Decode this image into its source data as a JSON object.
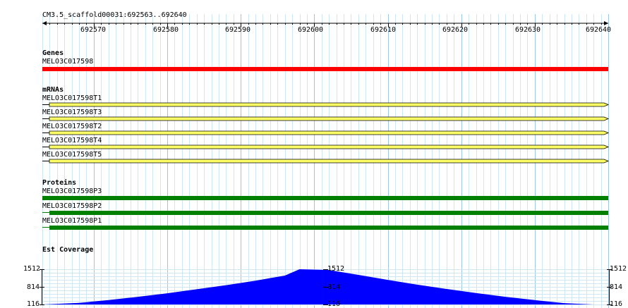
{
  "ruler": {
    "landmark": "CM3.5_scaffold00031:692563..692640",
    "start": 692563,
    "end": 692640,
    "ticks": [
      "692570",
      "692580",
      "692590",
      "692600",
      "692610",
      "692620",
      "692630",
      "692640"
    ]
  },
  "tracks": {
    "genes": {
      "title": "Genes",
      "color": "#ff0000",
      "features": [
        {
          "name": "MELO3C017598"
        }
      ]
    },
    "mrnas": {
      "title": "mRNAs",
      "color": "#ffff66",
      "features": [
        {
          "name": "MELO3C017598T1"
        },
        {
          "name": "MELO3C017598T3"
        },
        {
          "name": "MELO3C017598T2"
        },
        {
          "name": "MELO3C017598T4"
        },
        {
          "name": "MELO3C017598T5"
        }
      ]
    },
    "proteins": {
      "title": "Proteins",
      "color": "#008000",
      "features": [
        {
          "name": "MELO3C017598P3"
        },
        {
          "name": "MELO3C017598P2"
        },
        {
          "name": "MELO3C017598P1"
        }
      ]
    },
    "est_coverage": {
      "title": "Est Coverage",
      "color": "#0000ff",
      "scale": [
        "1512",
        "814",
        "116"
      ],
      "max": 1512,
      "min": 116
    }
  },
  "chart_data": {
    "type": "area",
    "title": "Est Coverage",
    "xlabel": "",
    "ylabel": "",
    "xlim": [
      692563,
      692640
    ],
    "ylim": [
      116,
      1512
    ],
    "x": [
      692563,
      692568,
      692572,
      692576,
      692580,
      692584,
      692588,
      692592,
      692596,
      692598,
      692602,
      692606,
      692610,
      692614,
      692618,
      692622,
      692626,
      692630,
      692634,
      692638
    ],
    "values": [
      116,
      180,
      290,
      420,
      560,
      720,
      880,
      1060,
      1260,
      1512,
      1480,
      1290,
      1090,
      900,
      730,
      570,
      420,
      290,
      170,
      116
    ]
  }
}
